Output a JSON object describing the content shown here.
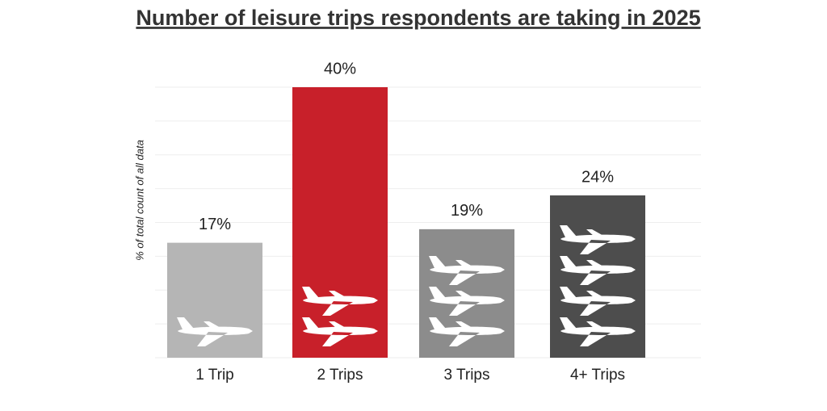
{
  "chart_data": {
    "type": "bar",
    "title": "Number of leisure trips respondents are taking in 2025",
    "y_label": "% of total count of all data",
    "categories": [
      "1 Trip",
      "2 Trips",
      "3 Trips",
      "4+ Trips"
    ],
    "values": [
      17,
      40,
      19,
      24
    ],
    "value_labels": [
      "17%",
      "40%",
      "19%",
      "24%"
    ],
    "colors": [
      "#b5b5b5",
      "#c8202a",
      "#8c8c8c",
      "#4d4d4d"
    ],
    "ylim": [
      0,
      40
    ],
    "yticks": [
      0,
      5,
      10,
      15,
      20,
      25,
      30,
      35,
      40
    ],
    "grid": true
  }
}
